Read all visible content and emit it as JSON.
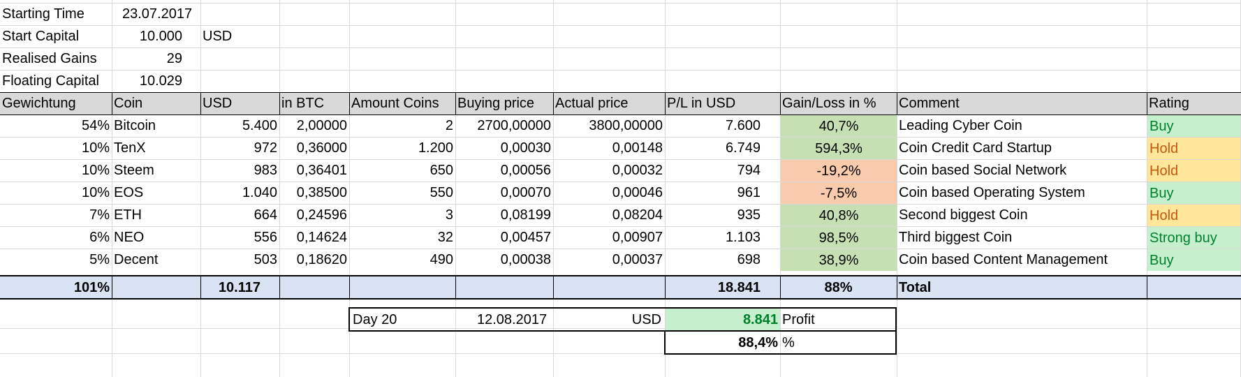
{
  "info": {
    "starting_time": {
      "label": "Starting Time",
      "value": "23.07.2017"
    },
    "start_capital": {
      "label": "Start Capital",
      "value": "10.000",
      "unit": "USD"
    },
    "realised_gains": {
      "label": "Realised Gains",
      "value": "29"
    },
    "floating_capital": {
      "label": "Floating Capital",
      "value": "10.029"
    }
  },
  "headers": [
    "Gewichtung",
    "Coin",
    "USD",
    "in BTC",
    "Amount Coins",
    "Buying price",
    "Actual price",
    "P/L in USD",
    "Gain/Loss in %",
    "Comment",
    "Rating"
  ],
  "rows": [
    {
      "weight": "54%",
      "coin": "Bitcoin",
      "usd": "5.400",
      "btc": "2,00000",
      "amount": "2",
      "buy": "2700,00000",
      "actual": "3800,00000",
      "pl": "7.600",
      "gain": "40,7%",
      "comment": "Leading Cyber Coin",
      "rating": "Buy"
    },
    {
      "weight": "10%",
      "coin": "TenX",
      "usd": "972",
      "btc": "0,36000",
      "amount": "1.200",
      "buy": "0,00030",
      "actual": "0,00148",
      "pl": "6.749",
      "gain": "594,3%",
      "comment": "Coin Credit Card Startup",
      "rating": "Hold"
    },
    {
      "weight": "10%",
      "coin": "Steem",
      "usd": "983",
      "btc": "0,36401",
      "amount": "650",
      "buy": "0,00056",
      "actual": "0,00032",
      "pl": "794",
      "gain": "-19,2%",
      "comment": "Coin based Social Network",
      "rating": "Hold"
    },
    {
      "weight": "10%",
      "coin": "EOS",
      "usd": "1.040",
      "btc": "0,38500",
      "amount": "550",
      "buy": "0,00070",
      "actual": "0,00046",
      "pl": "961",
      "gain": "-7,5%",
      "comment": "Coin based Operating System",
      "rating": "Buy"
    },
    {
      "weight": "7%",
      "coin": "ETH",
      "usd": "664",
      "btc": "0,24596",
      "amount": "3",
      "buy": "0,08199",
      "actual": "0,08204",
      "pl": "935",
      "gain": "40,8%",
      "comment": "Second biggest Coin",
      "rating": "Hold"
    },
    {
      "weight": "6%",
      "coin": "NEO",
      "usd": "556",
      "btc": "0,14624",
      "amount": "32",
      "buy": "0,00457",
      "actual": "0,00907",
      "pl": "1.103",
      "gain": "98,5%",
      "comment": "Third biggest Coin",
      "rating": "Strong buy"
    },
    {
      "weight": "5%",
      "coin": "Decent",
      "usd": "503",
      "btc": "0,18620",
      "amount": "490",
      "buy": "0,00038",
      "actual": "0,00037",
      "pl": "698",
      "gain": "38,9%",
      "comment": "Coin based Content Management",
      "rating": "Buy"
    }
  ],
  "totals": {
    "weight": "101%",
    "usd": "10.117",
    "pl": "18.841",
    "gain": "88%",
    "label": "Total"
  },
  "summary": {
    "day": "Day 20",
    "date": "12.08.2017",
    "currency": "USD",
    "profit_value": "8.841",
    "profit_label": "Profit",
    "percent_value": "88,4%",
    "percent_label": "%"
  },
  "colors": {
    "gain_positive": "#c6e0b4",
    "gain_negative": "#f8cbad",
    "rating_buy": "#c6efce",
    "rating_hold": "#ffe699",
    "header": "#d9d9d9",
    "total": "#dae3f3"
  }
}
